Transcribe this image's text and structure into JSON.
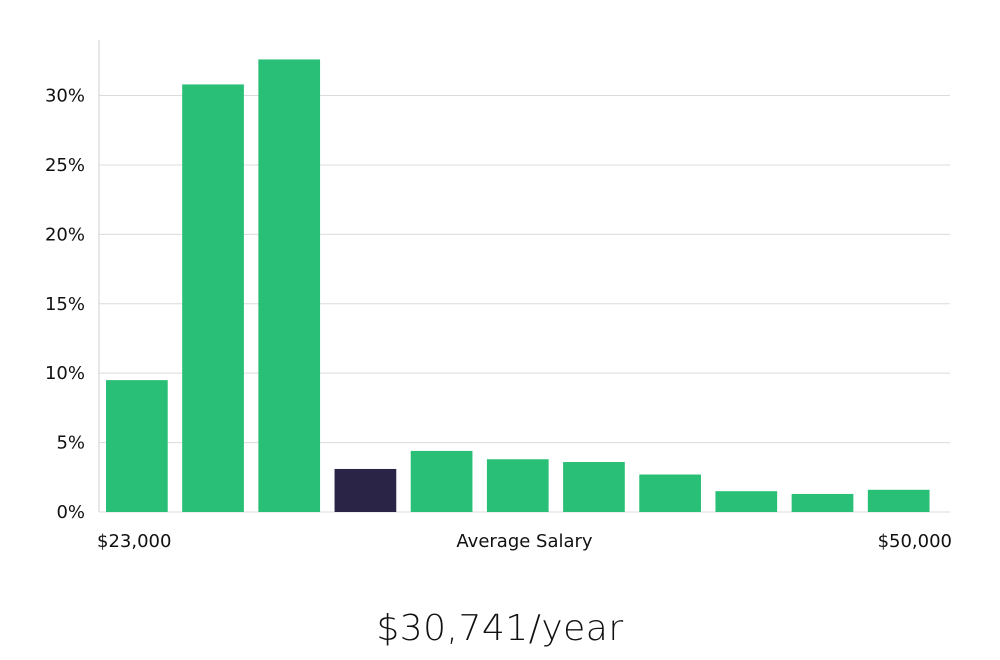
{
  "chart_data": {
    "type": "bar",
    "categories": [
      "",
      "",
      "",
      "",
      "",
      "",
      "",
      "",
      "",
      "",
      ""
    ],
    "values": [
      9.5,
      30.8,
      32.6,
      3.1,
      4.4,
      3.8,
      3.6,
      2.7,
      1.5,
      1.3,
      1.6
    ],
    "highlight_index": 3,
    "ylim": [
      0,
      34
    ],
    "yticks": [
      0,
      5,
      10,
      15,
      20,
      25,
      30
    ],
    "ytick_labels": [
      "0%",
      "5%",
      "10%",
      "15%",
      "20%",
      "25%",
      "30%"
    ],
    "grid": true,
    "xlabel": "Average Salary",
    "x_min_label": "$23,000",
    "x_max_label": "$50,000",
    "colors": {
      "bar": "#2abf76",
      "highlight": "#2a2547",
      "grid": "#dcdcdc"
    }
  },
  "headline": "$30,741/year"
}
